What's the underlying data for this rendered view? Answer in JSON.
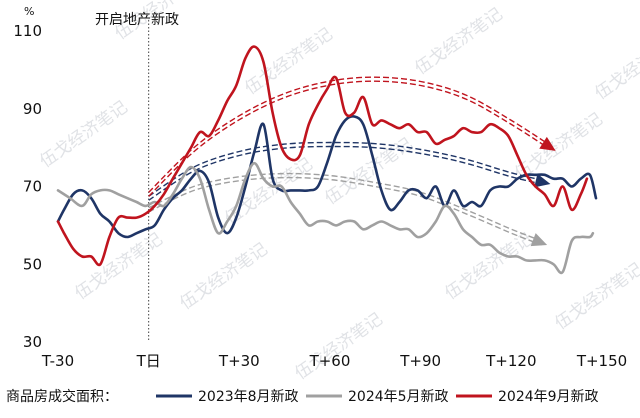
{
  "chart_data": {
    "type": "line",
    "y_unit": "%",
    "ylim": [
      30,
      110
    ],
    "y_ticks": [
      30,
      50,
      70,
      90,
      110
    ],
    "xlim": [
      -30,
      150
    ],
    "x_ticks": [
      {
        "value": -30,
        "label": "T-30"
      },
      {
        "value": 0,
        "label": "T日"
      },
      {
        "value": 30,
        "label": "T+30"
      },
      {
        "value": 60,
        "label": "T+60"
      },
      {
        "value": 90,
        "label": "T+90"
      },
      {
        "value": 120,
        "label": "T+120"
      },
      {
        "value": 150,
        "label": "T+150"
      }
    ],
    "annotation": "开启地产新政",
    "legend_title": "商品房成交面积：",
    "watermark": "伍戈经济笔记",
    "series": [
      {
        "name": "2023年8月新政",
        "color": "#1f3566",
        "x": [
          -30,
          -28,
          -25,
          -22,
          -19,
          -16,
          -13,
          -10,
          -7,
          -4,
          -1,
          2,
          5,
          8,
          11,
          14,
          17,
          20,
          23,
          26,
          29,
          32,
          35,
          38,
          41,
          44,
          47,
          50,
          53,
          56,
          59,
          62,
          65,
          68,
          71,
          74,
          77,
          80,
          83,
          86,
          89,
          92,
          95,
          98,
          101,
          104,
          107,
          110,
          113,
          116,
          119,
          122,
          125,
          128,
          131,
          134,
          137,
          140,
          143,
          146,
          148
        ],
        "values": [
          61,
          64,
          68,
          69,
          67,
          63,
          61,
          58,
          57,
          58,
          59,
          60,
          64,
          67,
          69,
          72,
          74,
          71,
          62,
          58,
          62,
          70,
          79,
          86,
          72,
          69,
          69,
          69,
          69,
          70,
          76,
          83,
          87,
          88,
          86,
          78,
          69,
          64,
          66,
          69,
          69,
          67,
          70,
          65,
          69,
          65,
          66,
          65,
          69,
          70,
          70,
          72,
          73,
          73,
          73,
          72,
          72,
          70,
          72,
          73,
          67
        ],
        "trend": {
          "x": [
            0,
            15,
            30,
            45,
            60,
            75,
            90,
            105,
            120,
            131
          ],
          "values": [
            67,
            74.5,
            78.5,
            80.4,
            80.8,
            80.5,
            79,
            76.5,
            73,
            71
          ]
        }
      },
      {
        "name": "2024年5月新政",
        "color": "#a0a0a0",
        "x": [
          -30,
          -26,
          -22,
          -19,
          -16,
          -13,
          -10,
          -7,
          -4,
          -1,
          2,
          5,
          8,
          11,
          14,
          17,
          20,
          23,
          26,
          29,
          32,
          35,
          38,
          41,
          44,
          47,
          50,
          53,
          56,
          59,
          62,
          65,
          68,
          71,
          74,
          77,
          80,
          83,
          86,
          89,
          92,
          95,
          98,
          101,
          104,
          107,
          110,
          113,
          116,
          119,
          122,
          125,
          128,
          131,
          134,
          137,
          140,
          143,
          146,
          147
        ],
        "values": [
          69,
          67,
          65,
          68,
          69,
          69,
          68,
          67,
          66,
          65,
          66,
          65,
          68,
          72,
          75,
          72,
          64,
          58,
          61,
          65,
          72,
          76,
          72,
          70,
          70,
          66,
          63,
          60,
          61,
          61,
          60,
          61,
          61,
          59,
          60,
          61,
          60,
          59,
          59,
          57,
          58,
          61,
          65,
          63,
          59,
          57,
          55,
          55,
          53,
          52,
          52,
          51,
          51,
          51,
          50,
          48,
          56,
          57,
          57,
          58
        ],
        "trend": {
          "x": [
            0,
            15,
            30,
            45,
            60,
            75,
            90,
            105,
            120,
            130
          ],
          "values": [
            64,
            69.5,
            72,
            72.8,
            72.3,
            70.5,
            68,
            63.5,
            58.5,
            55.5
          ]
        }
      },
      {
        "name": "2024年9月新政",
        "color": "#c0141e",
        "x": [
          -30,
          -28,
          -25,
          -22,
          -19,
          -16,
          -13,
          -10,
          -7,
          -4,
          -1,
          2,
          5,
          8,
          11,
          14,
          17,
          20,
          23,
          26,
          29,
          32,
          35,
          38,
          41,
          44,
          47,
          50,
          53,
          56,
          59,
          62,
          65,
          68,
          71,
          74,
          77,
          80,
          83,
          86,
          89,
          92,
          95,
          98,
          101,
          104,
          107,
          110,
          113,
          116,
          119,
          122,
          125,
          128,
          131,
          134,
          137,
          140,
          143,
          145
        ],
        "values": [
          61,
          58,
          54,
          52,
          52,
          50,
          57,
          62,
          62,
          62,
          63,
          65,
          68,
          72,
          76,
          80,
          84,
          83,
          87,
          92,
          96,
          103,
          106,
          102,
          89,
          80,
          77,
          78,
          86,
          91,
          95,
          98,
          89,
          89,
          93,
          86,
          87,
          86,
          85,
          86,
          84,
          84,
          81,
          82,
          83,
          85,
          84,
          84,
          86,
          85,
          83,
          78,
          73,
          70,
          68,
          65,
          70,
          64,
          68,
          72
        ],
        "trend": {
          "x": [
            0,
            15,
            30,
            45,
            60,
            75,
            90,
            105,
            120,
            133
          ],
          "values": [
            68,
            79.5,
            87.7,
            93.4,
            96.6,
            97.6,
            96.5,
            93,
            86.5,
            80
          ]
        }
      }
    ]
  }
}
